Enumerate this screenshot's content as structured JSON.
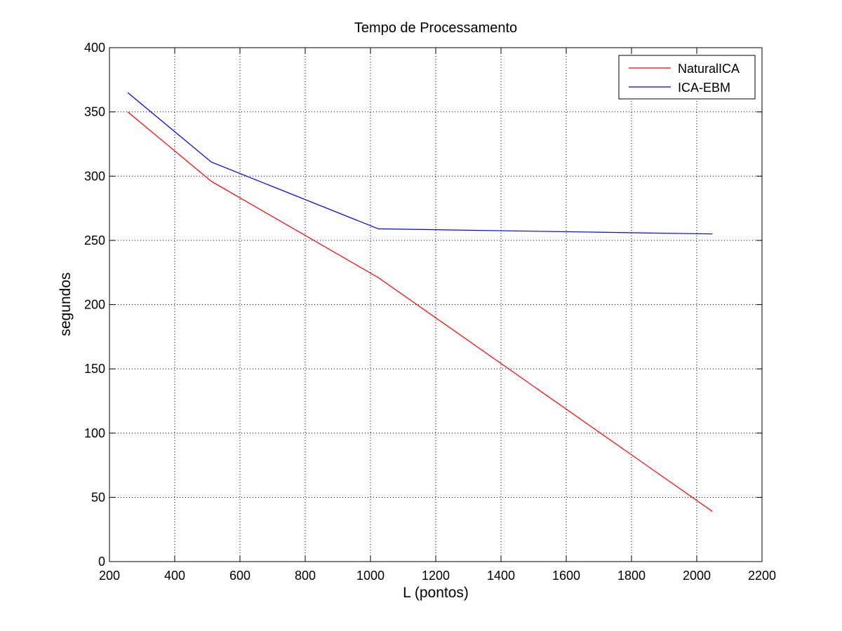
{
  "chart_data": {
    "type": "line",
    "title": "Tempo de Processamento",
    "xlabel": "L (pontos)",
    "ylabel": "segundos",
    "xlim": [
      200,
      2200
    ],
    "ylim": [
      0,
      400
    ],
    "xticks": [
      200,
      400,
      600,
      800,
      1000,
      1200,
      1400,
      1600,
      1800,
      2000,
      2200
    ],
    "yticks": [
      0,
      50,
      100,
      150,
      200,
      250,
      300,
      350,
      400
    ],
    "grid": true,
    "grid_style": "dotted",
    "legend_position": "top-right",
    "series": [
      {
        "name": "NaturalICA",
        "color": "#ff0000",
        "x": [
          256,
          512,
          1024,
          2048
        ],
        "y": [
          350,
          296,
          221,
          39
        ]
      },
      {
        "name": "ICA-EBM",
        "color": "#0000ff",
        "x": [
          256,
          512,
          1024,
          2048
        ],
        "y": [
          365,
          311,
          259,
          255
        ]
      }
    ]
  }
}
